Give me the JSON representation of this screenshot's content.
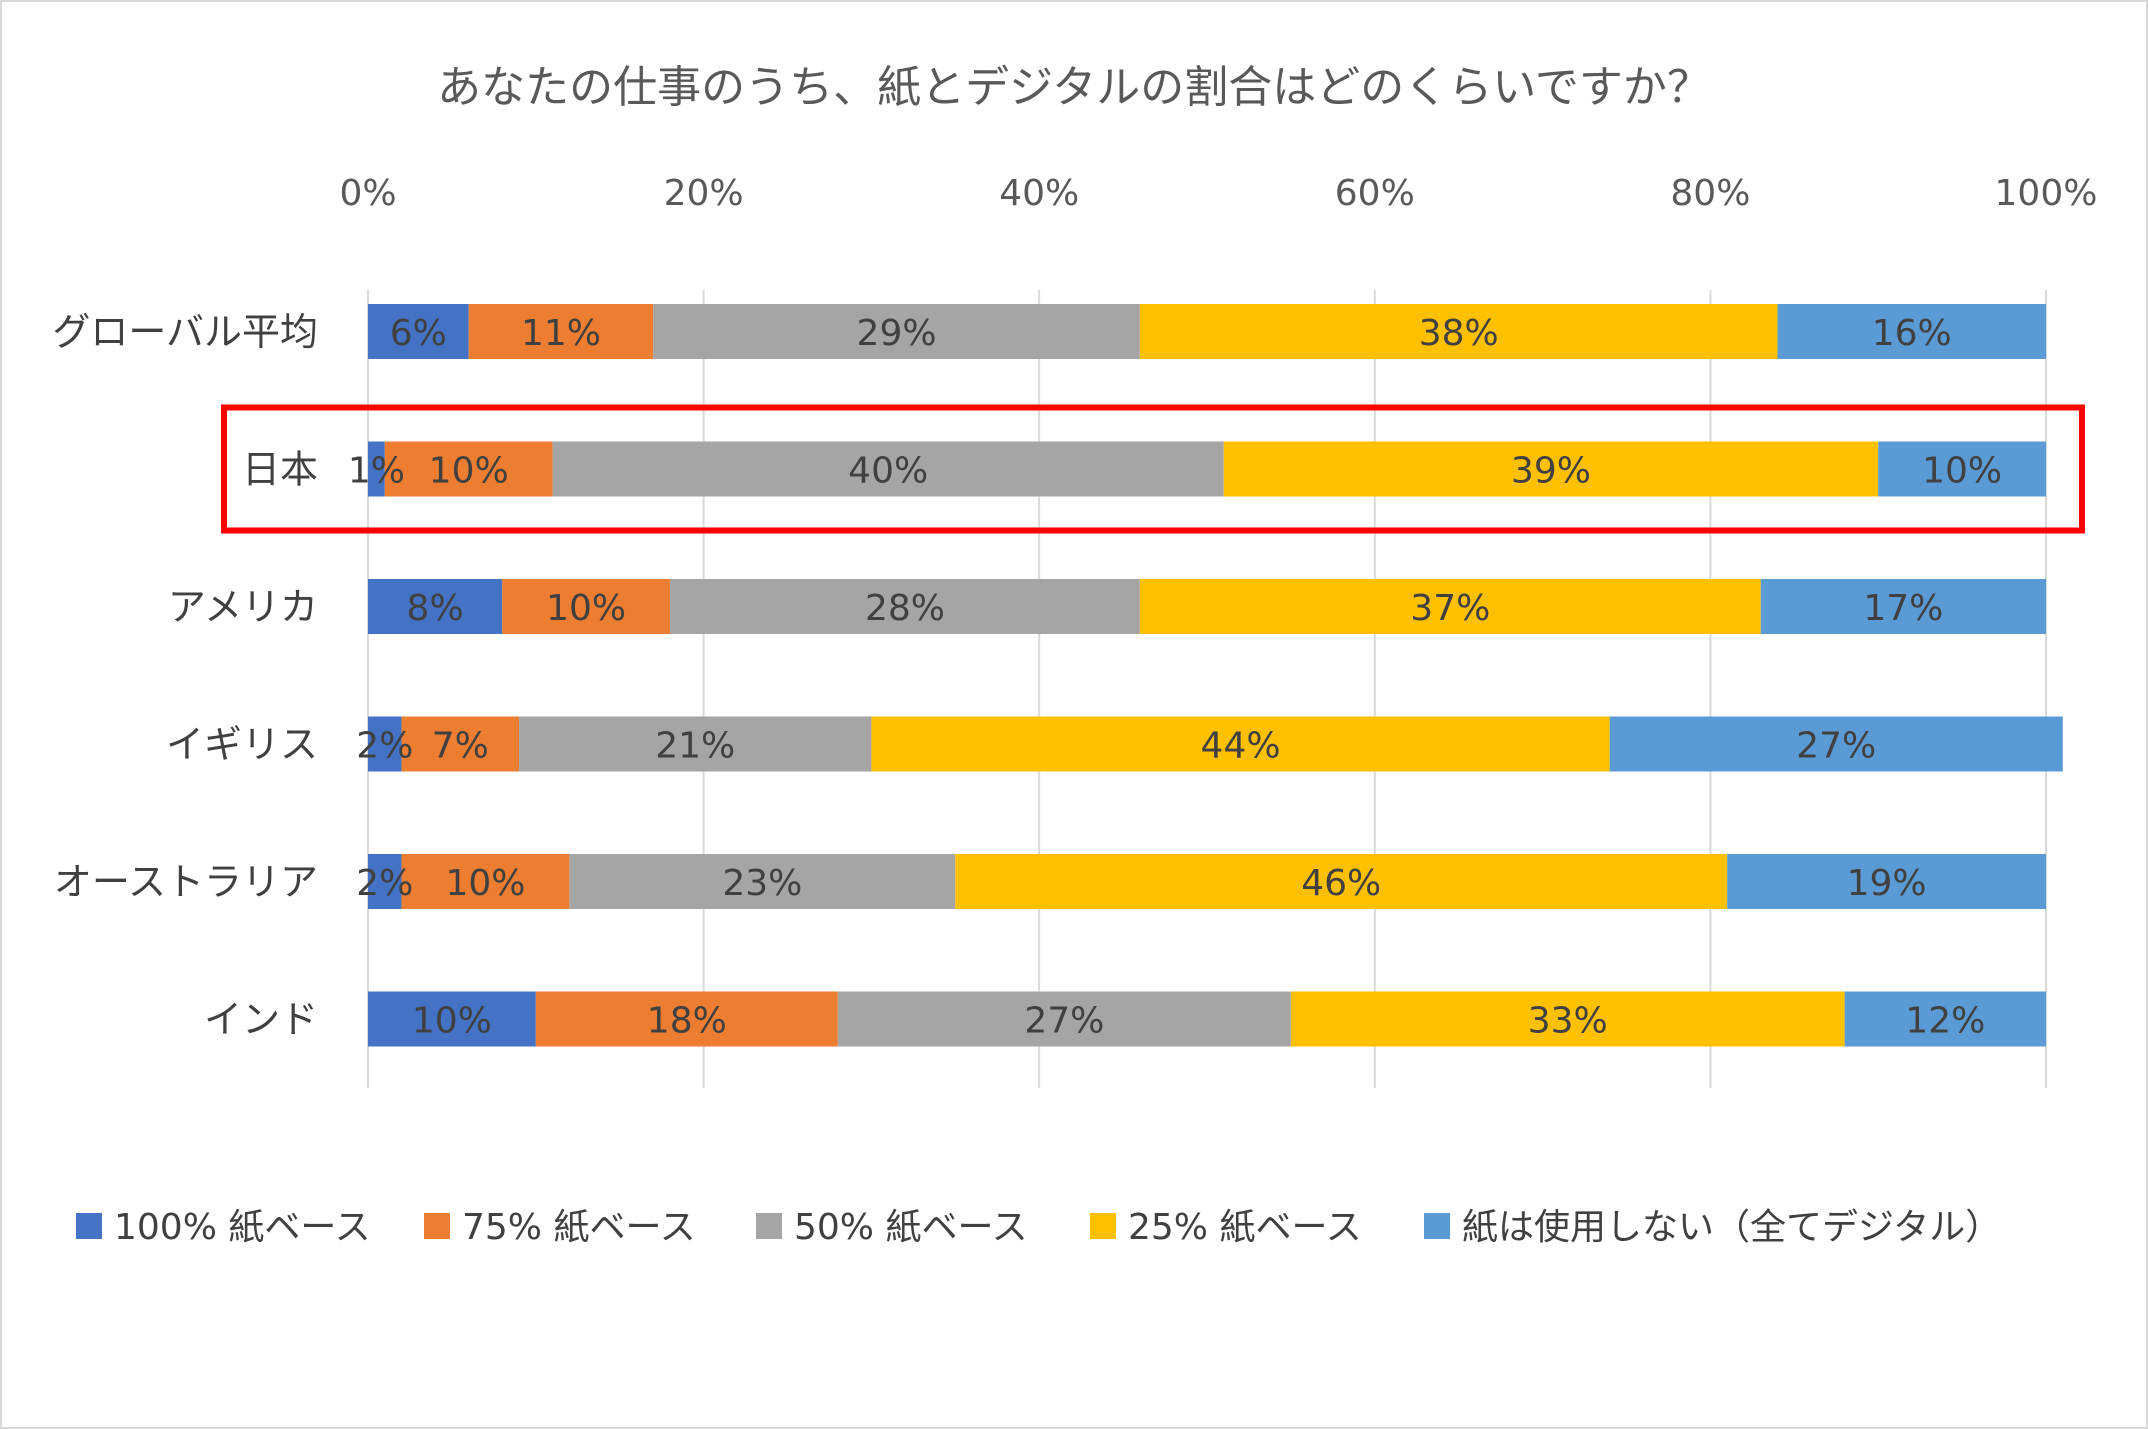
{
  "chart_data": {
    "type": "bar",
    "orientation": "horizontal-stacked-100",
    "title": "あなたの仕事のうち、紙とデジタルの割合はどのくらいですか？",
    "x_ticks": [
      "0%",
      "20%",
      "40%",
      "60%",
      "80%",
      "100%"
    ],
    "xlim": [
      0,
      100
    ],
    "x_axis_position": "top",
    "grid": "vertical",
    "legend_position": "bottom",
    "categories": [
      "グローバル平均",
      "日本",
      "アメリカ",
      "イギリス",
      "オーストラリア",
      "インド"
    ],
    "highlighted_category": "日本",
    "highlight_color": "#ff0000",
    "series": [
      {
        "name": "100% 紙ベース",
        "color": "#4472c4",
        "values": [
          6,
          1,
          8,
          2,
          2,
          10
        ]
      },
      {
        "name": "75% 紙ベース",
        "color": "#ed7d31",
        "values": [
          11,
          10,
          10,
          7,
          10,
          18
        ]
      },
      {
        "name": "50% 紙ベース",
        "color": "#a5a5a5",
        "values": [
          29,
          40,
          28,
          21,
          23,
          27
        ]
      },
      {
        "name": "25% 紙ベース",
        "color": "#ffc000",
        "values": [
          38,
          39,
          37,
          44,
          46,
          33
        ]
      },
      {
        "name": "紙は使用しない（全てデジタル）",
        "color": "#5b9bd5",
        "values": [
          16,
          10,
          17,
          27,
          19,
          12
        ]
      }
    ],
    "data_labels": [
      [
        "6%",
        "1%",
        "8%",
        "2%",
        "2%",
        "10%"
      ],
      [
        "11%",
        "10%",
        "10%",
        "7%",
        "10%",
        "18%"
      ],
      [
        "29%",
        "40%",
        "28%",
        "21%",
        "23%",
        "27%"
      ],
      [
        "38%",
        "39%",
        "37%",
        "44%",
        "46%",
        "33%"
      ],
      [
        "16%",
        "10%",
        "17%",
        "27%",
        "19%",
        "12%"
      ]
    ]
  }
}
